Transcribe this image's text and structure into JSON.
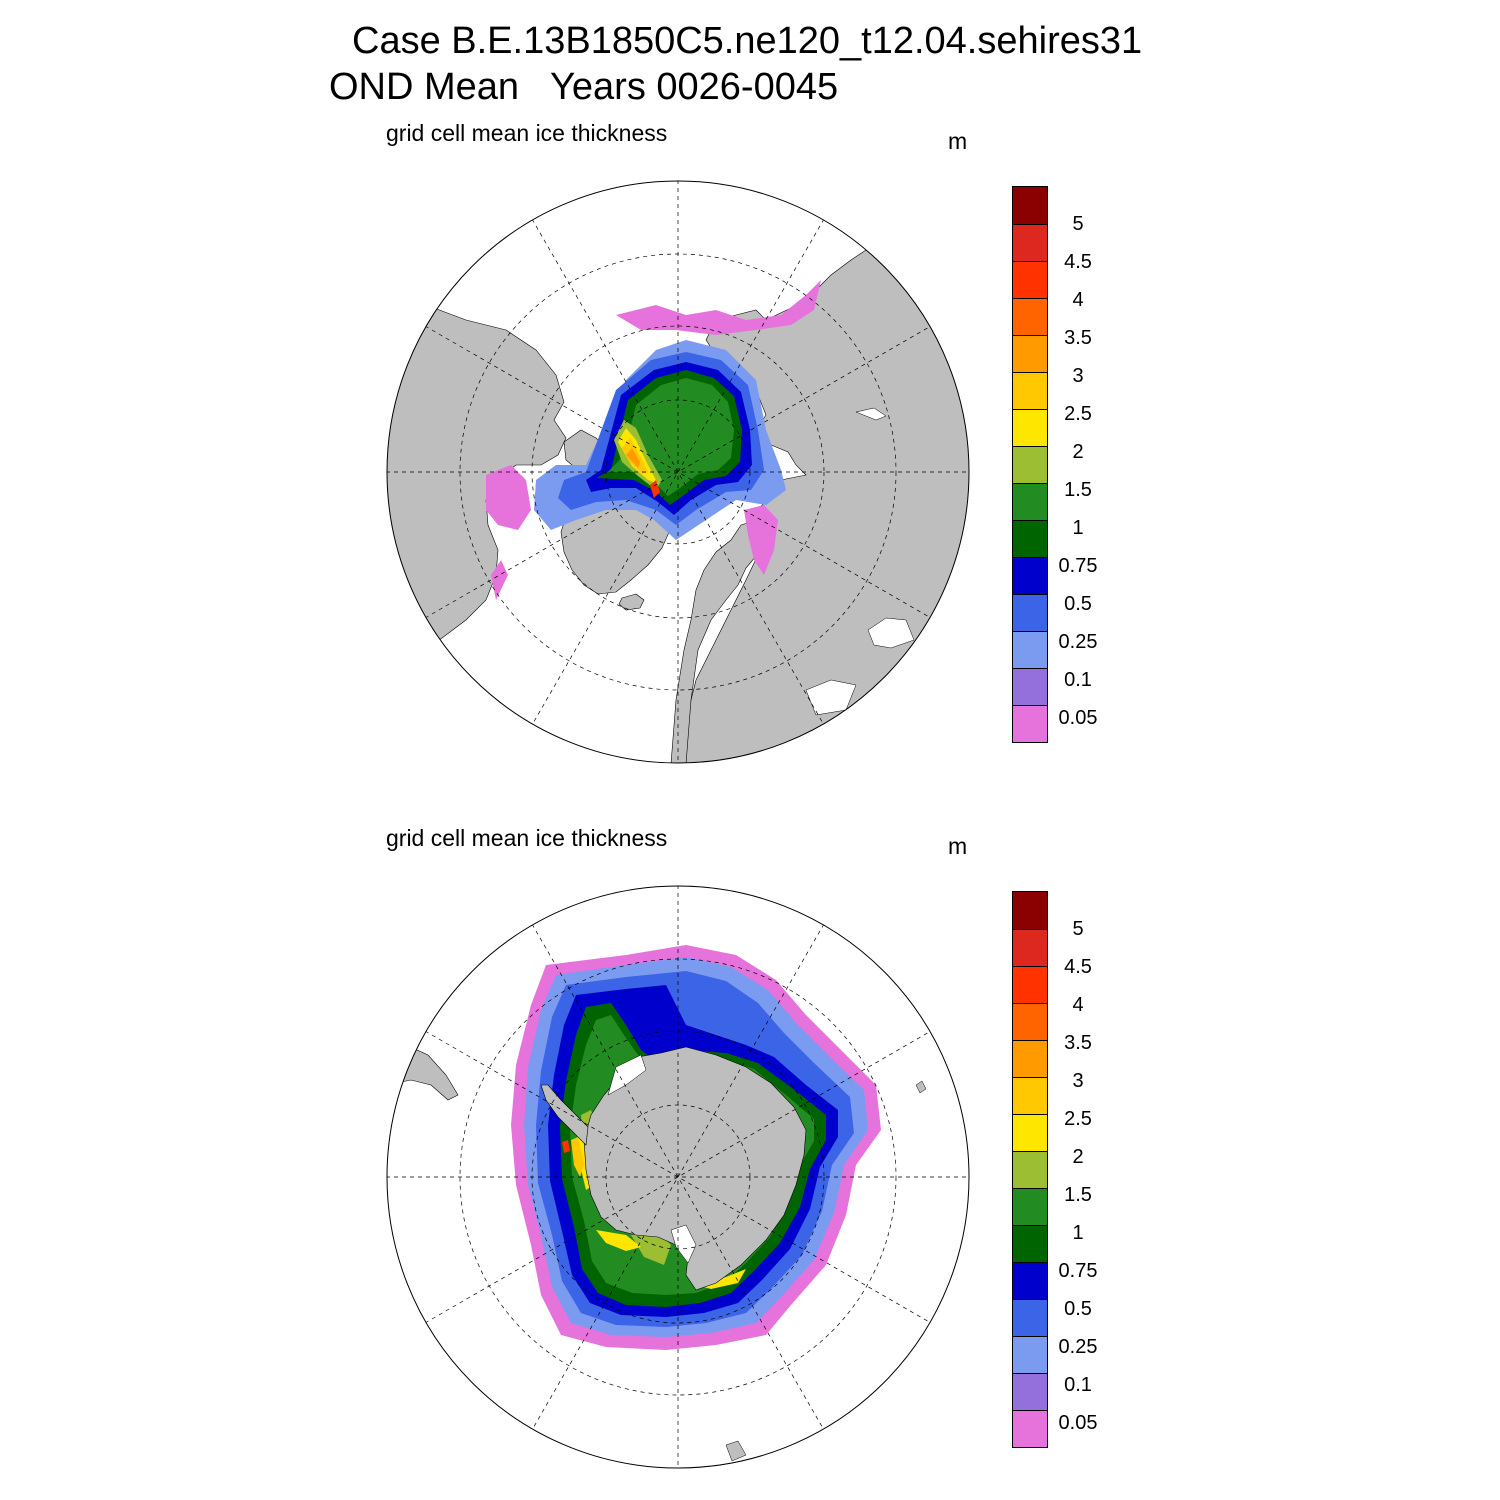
{
  "header": {
    "line1": "Case B.E.13B1850C5.ne120_t12.04.sehires31",
    "line2": "OND Mean   Years 0026-0045"
  },
  "colors": {
    "land": "#bebebe",
    "background": "#ffffff",
    "scale": [
      "#e673dc",
      "#9370db",
      "#7b9bf0",
      "#3c64e6",
      "#0000cd",
      "#006400",
      "#228b22",
      "#9bbe32",
      "#ffe600",
      "#ffc800",
      "#ff9b00",
      "#ff6400",
      "#ff3200",
      "#dc281e",
      "#8b0000"
    ]
  },
  "panels": [
    {
      "id": "north",
      "title": "grid cell mean ice thickness",
      "units": "m",
      "projection": "north-polar-stereographic",
      "colorbar_labels": [
        "5",
        "4.5",
        "4",
        "3.5",
        "3",
        "2.5",
        "2",
        "1.5",
        "1",
        "0.75",
        "0.5",
        "0.25",
        "0.1",
        "0.05"
      ]
    },
    {
      "id": "south",
      "title": "grid cell mean ice thickness",
      "units": "m",
      "projection": "south-polar-stereographic",
      "colorbar_labels": [
        "5",
        "4.5",
        "4",
        "3.5",
        "3",
        "2.5",
        "2",
        "1.5",
        "1",
        "0.75",
        "0.5",
        "0.25",
        "0.1",
        "0.05"
      ]
    }
  ]
}
